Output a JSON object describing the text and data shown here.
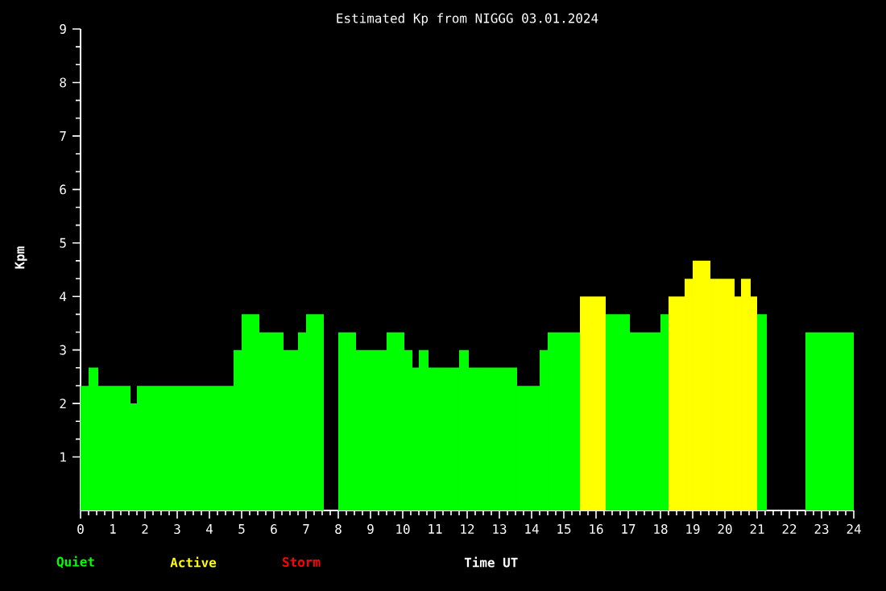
{
  "chart_data": {
    "type": "bar",
    "title": "Estimated Kp from NIGGG 03.01.2024",
    "xlabel": "Time UT",
    "ylabel": "Kpm",
    "x": [
      0.125,
      0.4,
      1.05,
      1.65,
      3.25,
      4.875,
      5.275,
      5.925,
      6.525,
      6.875,
      7.275,
      7.775,
      8.275,
      9.025,
      9.775,
      10.175,
      10.4,
      10.65,
      11.275,
      11.9,
      12.8,
      13.9,
      14.375,
      15.0,
      15.9,
      16.675,
      17.525,
      18.125,
      18.5,
      18.875,
      19.275,
      19.925,
      20.4,
      20.65,
      20.9,
      21.15,
      21.9,
      23.25
    ],
    "series": [
      {
        "name": "Quiet",
        "color": "#00ff00",
        "values": [
          2.33,
          2.67,
          2.33,
          2.0,
          2.33,
          3.0,
          3.67,
          3.33,
          3.0,
          3.33,
          3.67,
          null,
          3.33,
          3.0,
          3.33,
          3.0,
          2.67,
          3.0,
          2.67,
          3.0,
          2.67,
          2.33,
          3.0,
          3.33,
          null,
          3.67,
          3.33,
          3.67,
          null,
          null,
          null,
          null,
          null,
          null,
          null,
          3.67,
          null,
          3.33
        ]
      },
      {
        "name": "Active",
        "color": "#ffff00",
        "values": [
          null,
          null,
          null,
          null,
          null,
          null,
          null,
          null,
          null,
          null,
          null,
          null,
          null,
          null,
          null,
          null,
          null,
          null,
          null,
          null,
          null,
          null,
          null,
          null,
          4.0,
          null,
          null,
          null,
          4.0,
          4.33,
          4.67,
          4.33,
          4.0,
          4.33,
          4.0,
          null,
          null,
          null
        ]
      },
      {
        "name": "Storm",
        "color": "#ff0000",
        "values": [
          null,
          null,
          null,
          null,
          null,
          null,
          null,
          null,
          null,
          null,
          null,
          null,
          null,
          null,
          null,
          null,
          null,
          null,
          null,
          null,
          null,
          null,
          null,
          null,
          null,
          null,
          null,
          null,
          null,
          null,
          null,
          null,
          null,
          null,
          null,
          null,
          null,
          null
        ]
      }
    ],
    "xlim": [
      0,
      24
    ],
    "ylim": [
      0,
      9
    ],
    "xticks": [
      0,
      1,
      2,
      3,
      4,
      5,
      6,
      7,
      8,
      9,
      10,
      11,
      12,
      13,
      14,
      15,
      16,
      17,
      18,
      19,
      20,
      21,
      22,
      23,
      24
    ],
    "yticks": [
      1,
      2,
      3,
      4,
      5,
      6,
      7,
      8,
      9
    ],
    "legend": "bottom"
  }
}
